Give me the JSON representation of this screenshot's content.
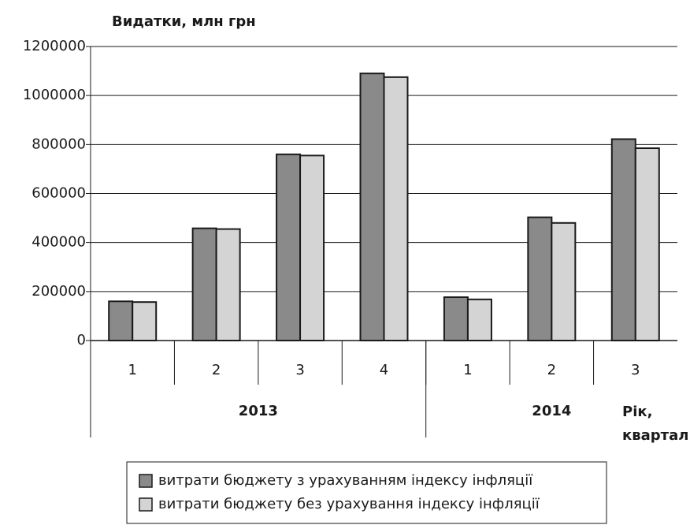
{
  "chart_data": {
    "type": "bar",
    "y_label": "Видатки, млн грн",
    "x_label": "Рік, квартал",
    "groups": [
      {
        "name": "2013",
        "categories": [
          "1",
          "2",
          "3",
          "4"
        ]
      },
      {
        "name": "2014",
        "categories": [
          "1",
          "2",
          "3"
        ]
      }
    ],
    "series": [
      {
        "name": "витрати бюджету з урахуванням індексу інфляції",
        "color": "#8a8a8a",
        "values": [
          160000,
          458000,
          760000,
          1090000,
          177000,
          503000,
          822000
        ]
      },
      {
        "name": "витрати бюджету без урахування індексу інфляції",
        "color": "#d4d4d4",
        "values": [
          157000,
          455000,
          755000,
          1075000,
          168000,
          480000,
          785000
        ]
      }
    ],
    "ylim": [
      0,
      1200000
    ],
    "yticks": [
      0,
      200000,
      400000,
      600000,
      800000,
      1000000,
      1200000
    ],
    "grid": true
  }
}
